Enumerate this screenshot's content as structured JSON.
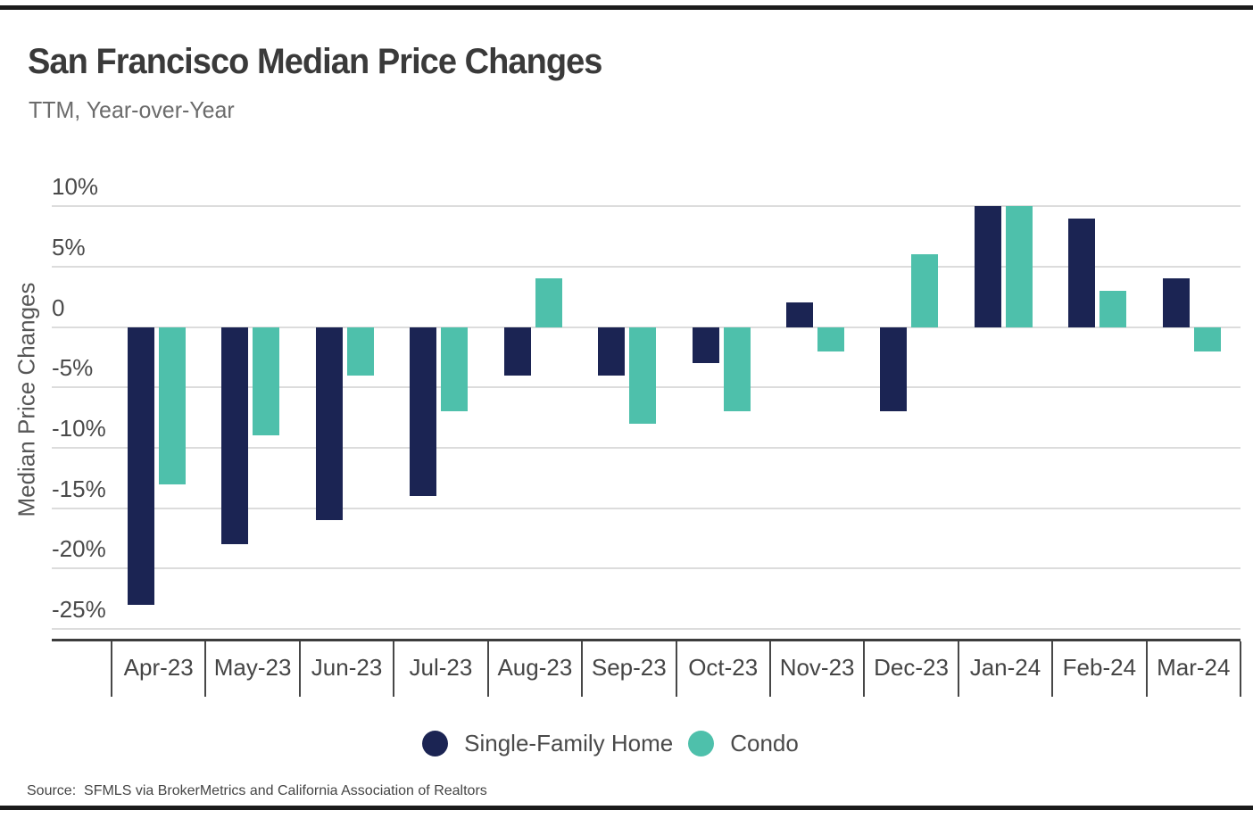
{
  "page": {
    "source_note": "Source:  SFMLS via BrokerMetrics and California Association of Realtors"
  },
  "chart_data": {
    "type": "bar",
    "title": "San Francisco Median Price Changes",
    "subtitle": "TTM, Year-over-Year",
    "ylabel": "Median Price Changes",
    "unit": "%",
    "grid": true,
    "legend_position": "bottom",
    "categories": [
      "Apr-23",
      "May-23",
      "Jun-23",
      "Jul-23",
      "Aug-23",
      "Sep-23",
      "Oct-23",
      "Nov-23",
      "Dec-23",
      "Jan-24",
      "Feb-24",
      "Mar-24"
    ],
    "series": [
      {
        "name": "Single-Family Home",
        "color": "#1b2453",
        "values": [
          -23,
          -18,
          -16,
          -14,
          -4,
          -4,
          -3,
          2,
          -7,
          10,
          9,
          4
        ]
      },
      {
        "name": "Condo",
        "color": "#4ec0ab",
        "values": [
          -13,
          -9,
          -4,
          -7,
          4,
          -8,
          -7,
          -2,
          6,
          10,
          3,
          -2
        ]
      }
    ],
    "yticks": [
      {
        "value": 10,
        "label": "10%"
      },
      {
        "value": 5,
        "label": "5%"
      },
      {
        "value": 0,
        "label": "0"
      },
      {
        "value": -5,
        "label": "-5%"
      },
      {
        "value": -10,
        "label": "-10%"
      },
      {
        "value": -15,
        "label": "-15%"
      },
      {
        "value": -20,
        "label": "-20%"
      },
      {
        "value": -25,
        "label": "-25%"
      }
    ],
    "ylim": [
      -25.8,
      12
    ]
  }
}
